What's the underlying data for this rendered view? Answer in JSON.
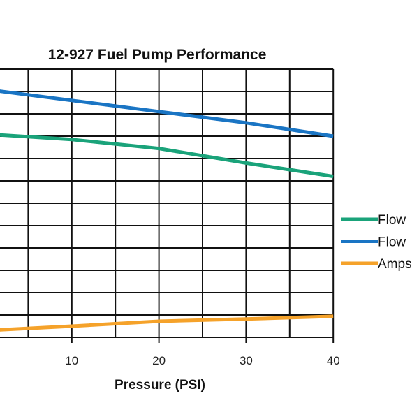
{
  "chart_data": {
    "type": "line",
    "title": "12-927 Fuel Pump Performance",
    "xlabel": "Pressure (PSI)",
    "ylabel": "",
    "xlim": [
      0,
      40
    ],
    "ylim": [
      0,
      12
    ],
    "x_ticks": [
      "10",
      "20",
      "30",
      "40"
    ],
    "grid": true,
    "legend_position": "right",
    "x": [
      0,
      10,
      20,
      30,
      40
    ],
    "series": [
      {
        "name": "Flow",
        "color": "#1aa37a",
        "values": [
          9.1,
          8.85,
          8.45,
          7.8,
          7.2
        ]
      },
      {
        "name": "Flow",
        "color": "#1a75c4",
        "values": [
          11.1,
          10.6,
          10.1,
          9.6,
          9.0
        ]
      },
      {
        "name": "Amps",
        "color": "#f5a22a",
        "values": [
          0.3,
          0.5,
          0.72,
          0.82,
          0.94
        ]
      }
    ]
  }
}
